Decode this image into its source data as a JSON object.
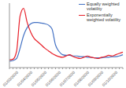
{
  "chart_data": {
    "type": "line",
    "categories": [
      null,
      null,
      "01/03/2020",
      null,
      null,
      null,
      "01/04/2020",
      null,
      null,
      null,
      "01/05/2020",
      null,
      null,
      null,
      "01/06/2020",
      null,
      null,
      null,
      "01/07/2020",
      null,
      null,
      null,
      "01/08/2020",
      null,
      null,
      null,
      "01/09/2020",
      null,
      null,
      null,
      "01/10/2020",
      null,
      null
    ],
    "series": [
      {
        "name": "Equally weighted volatility",
        "color": "#4472c4",
        "values": [
          10,
          11,
          14,
          30,
          50,
          62,
          68,
          70,
          70,
          69,
          68,
          66,
          60,
          35,
          25,
          20,
          19,
          19,
          18,
          18,
          17,
          17,
          16,
          16,
          15,
          15,
          15,
          16,
          16,
          17,
          17,
          18,
          20
        ]
      },
      {
        "name": "Exponentially weighted volatility",
        "color": "#e8202a",
        "values": [
          12,
          13,
          25,
          80,
          92,
          70,
          55,
          45,
          40,
          35,
          30,
          26,
          22,
          19,
          17,
          16,
          18,
          20,
          17,
          15,
          14,
          16,
          18,
          16,
          15,
          14,
          16,
          17,
          19,
          18,
          20,
          22,
          24
        ]
      }
    ],
    "ylim": [
      0,
      100
    ],
    "grid": false,
    "legend": "top-right",
    "tick_labels": "x"
  }
}
